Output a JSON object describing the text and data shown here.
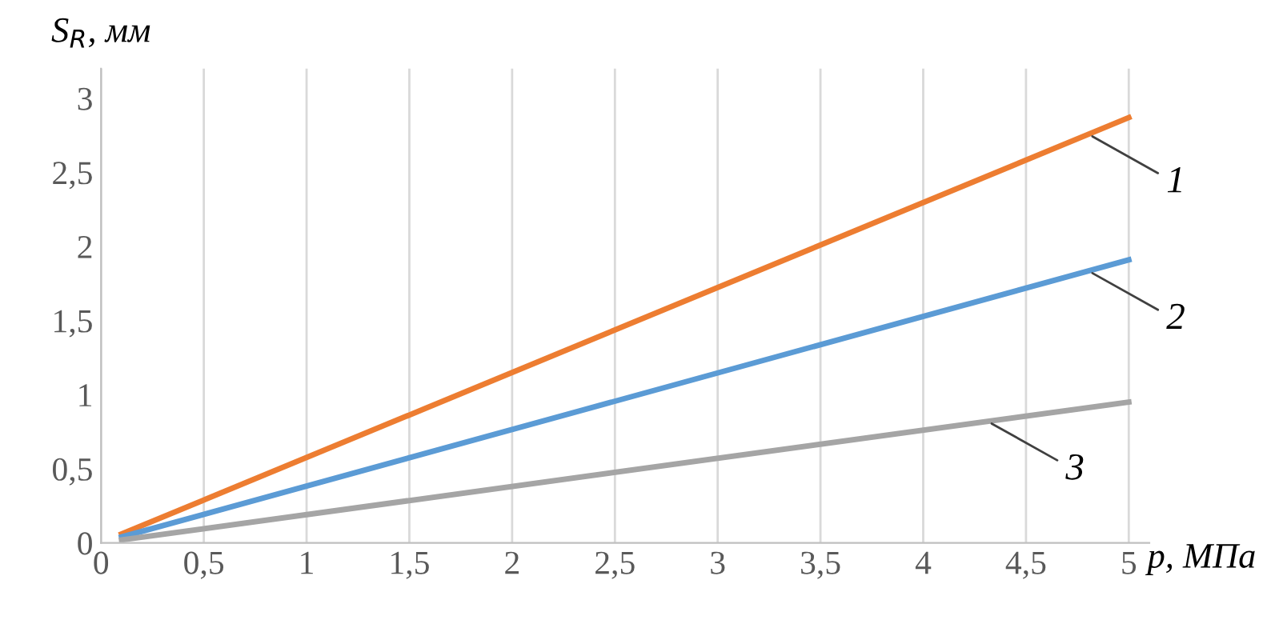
{
  "chart_data": {
    "type": "line",
    "xlabel": "p, МПа",
    "ylabel": "S$_{R}$, мм",
    "x": [
      0.1,
      5
    ],
    "series": [
      {
        "name": "1",
        "color": "#ed7d31",
        "values": [
          0.06,
          2.87
        ]
      },
      {
        "name": "2",
        "color": "#5b9bd5",
        "values": [
          0.04,
          1.91
        ]
      },
      {
        "name": "3",
        "color": "#a5a5a5",
        "values": [
          0.02,
          0.95
        ]
      }
    ],
    "xlim": [
      0,
      5.1
    ],
    "ylim": [
      0,
      3.2
    ],
    "xticks": [
      0,
      {
        "value": 0.5,
        "label": "0,5"
      },
      1,
      {
        "value": 1.5,
        "label": "1,5"
      },
      2,
      {
        "value": 2.5,
        "label": "2,5"
      },
      3,
      {
        "value": 3.5,
        "label": "3,5"
      },
      4,
      {
        "value": 4.5,
        "label": "4,5"
      },
      5
    ],
    "yticks": [
      0,
      {
        "value": 0.5,
        "label": "0,5"
      },
      1,
      {
        "value": 1.5,
        "label": "1,5"
      },
      2,
      {
        "value": 2.5,
        "label": "2,5"
      },
      3
    ],
    "grid": "x",
    "legend": false,
    "marker": "none",
    "line_style": "solid"
  }
}
